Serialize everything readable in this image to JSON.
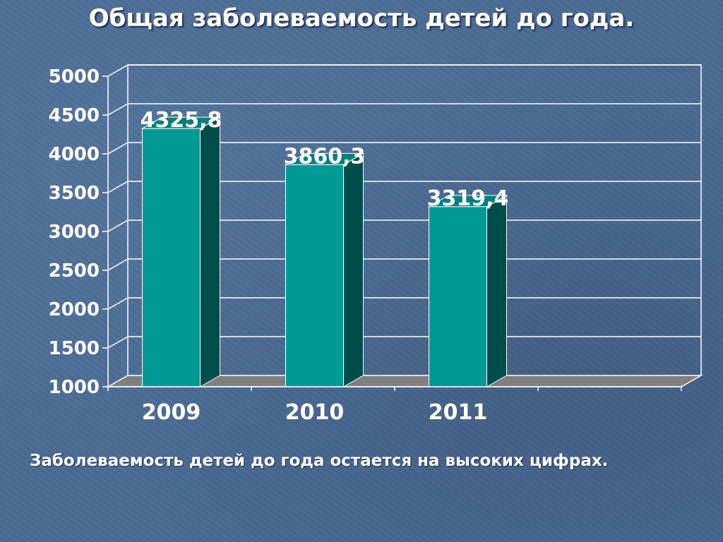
{
  "slide": {
    "title": "Общая заболеваемость детей до года.",
    "caption": "Заболеваемость детей до года остается на высоких цифрах."
  },
  "chart_data": {
    "type": "bar",
    "categories": [
      "2009",
      "2010",
      "2011"
    ],
    "values": [
      4325.8,
      3860.3,
      3319.4
    ],
    "data_labels": [
      "4325,8",
      "3860,3",
      "3319,4"
    ],
    "ylim": [
      1000,
      5000
    ],
    "y_ticks": [
      "1000",
      "1500",
      "2000",
      "2500",
      "3000",
      "3500",
      "4000",
      "4500",
      "5000"
    ],
    "grid": true,
    "three_d": true,
    "colors": {
      "bar_front": "#009a96",
      "bar_side": "#004d4b",
      "bar_top": "#00807c",
      "floor": "#7f7f7f"
    }
  }
}
